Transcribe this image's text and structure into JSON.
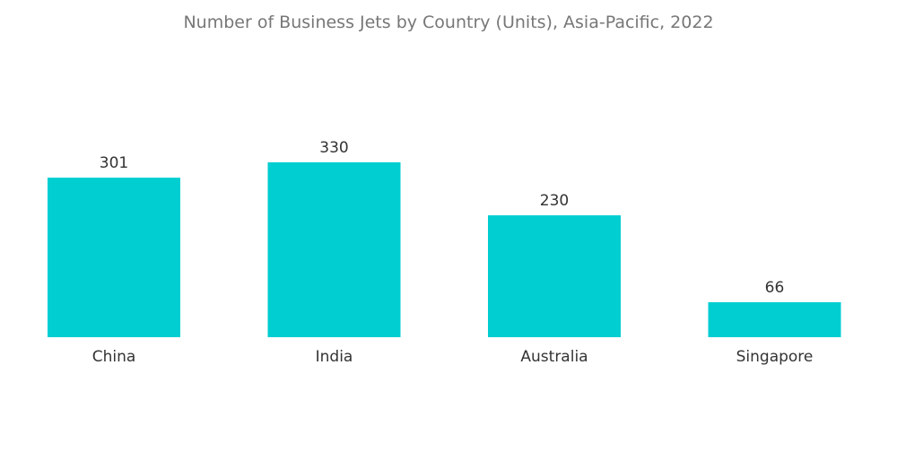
{
  "chart_data": {
    "type": "bar",
    "title": "Number of Business Jets by Country (Units), Asia-Pacific, 2022",
    "categories": [
      "China",
      "India",
      "Australia",
      "Singapore"
    ],
    "values": [
      301,
      330,
      230,
      66
    ],
    "xlabel": "",
    "ylabel": "",
    "ylim": [
      0,
      330
    ],
    "grid": false,
    "legend": "none",
    "bar_color": "#00CED1"
  }
}
